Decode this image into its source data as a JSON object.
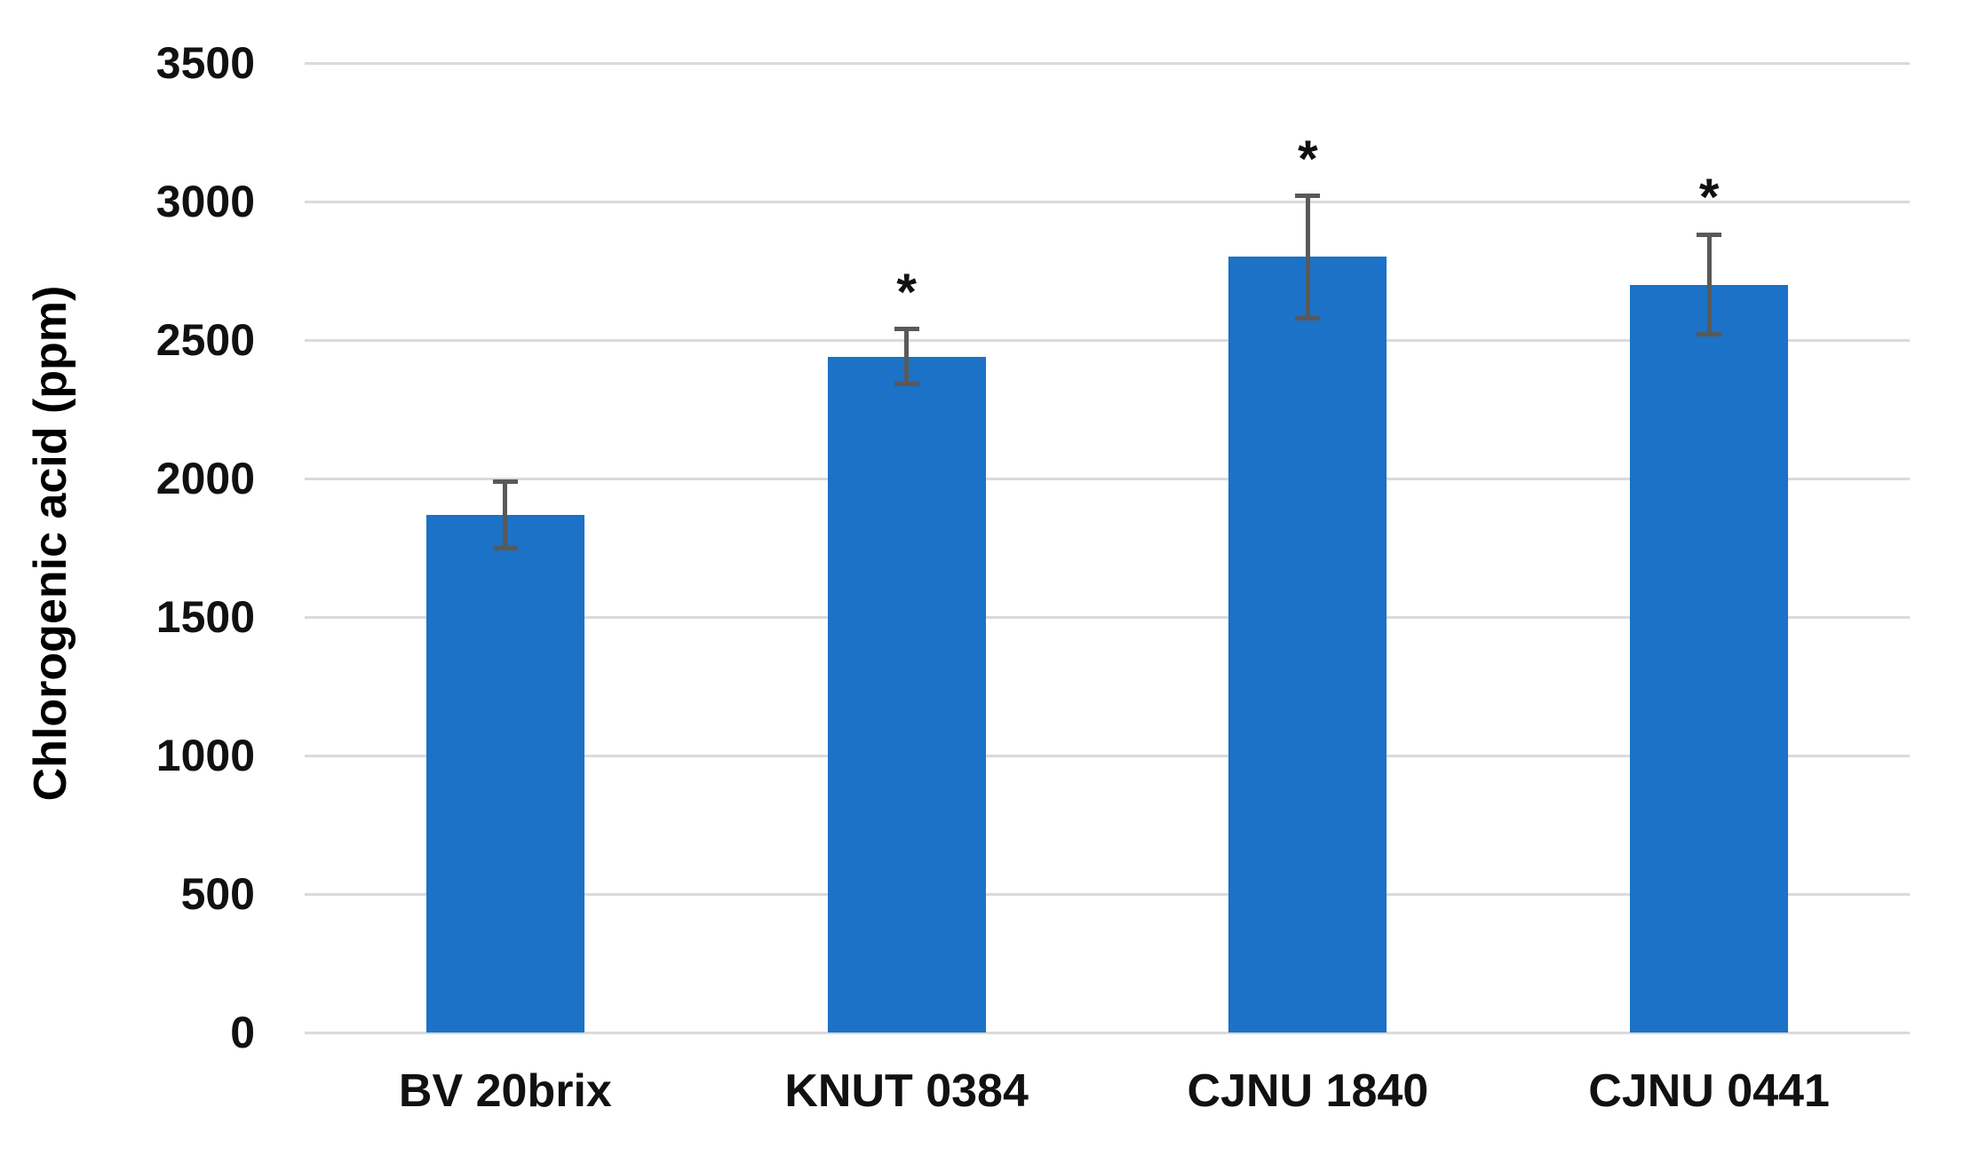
{
  "chart_data": {
    "type": "bar",
    "title": "",
    "xlabel": "",
    "ylabel": "Chlorogenic acid (ppm)",
    "categories": [
      "BV 20brix",
      "KNUT 0384",
      "CJNU 1840",
      "CJNU 0441"
    ],
    "values": [
      1870,
      2440,
      2800,
      2700
    ],
    "error_bars": [
      120,
      100,
      220,
      180
    ],
    "significance": [
      "",
      "*",
      "*",
      "*"
    ],
    "ylim": [
      0,
      3500
    ],
    "yticks": [
      0,
      500,
      1000,
      1500,
      2000,
      2500,
      3000,
      3500
    ],
    "grid": "horizontal",
    "legend": "none",
    "bar_color": "#1b72c7",
    "error_bar_color": "#595959",
    "gridline_color": "#dadada",
    "text_color": "#111111"
  }
}
